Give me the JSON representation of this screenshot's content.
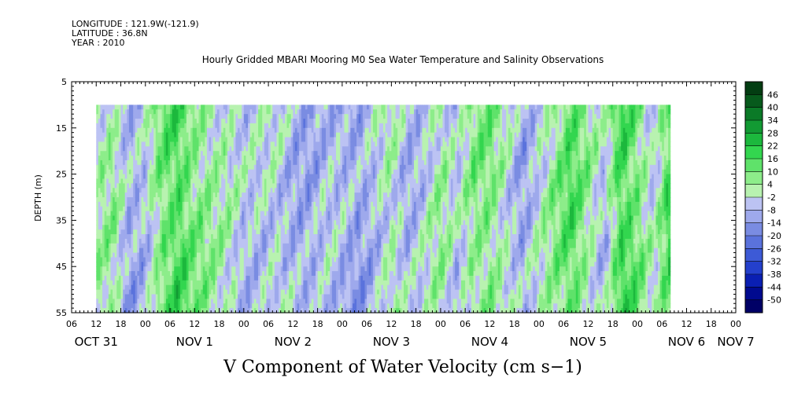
{
  "header": {
    "longitude": "LONGITUDE : 121.9W(-121.9)",
    "latitude": "LATITUDE : 36.8N",
    "year": "YEAR : 2010"
  },
  "chart_data": {
    "type": "heatmap",
    "title": "Hourly Gridded MBARI Mooring M0 Sea Water Temperature and Salinity Observations",
    "variable_label": "V Component of Water Velocity (cm s−1)",
    "ylabel": "DEPTH (m)",
    "y_reversed": true,
    "ylim": [
      5,
      55
    ],
    "data_depth_range": [
      10,
      55
    ],
    "y_ticks": [
      5,
      15,
      25,
      35,
      45,
      55
    ],
    "x_range_hours": [
      0,
      162
    ],
    "data_time_range_hours": [
      6,
      146
    ],
    "x_hour_ticks": [
      {
        "h": 0,
        "label": "06"
      },
      {
        "h": 6,
        "label": "12"
      },
      {
        "h": 12,
        "label": "18"
      },
      {
        "h": 18,
        "label": "00"
      },
      {
        "h": 24,
        "label": "06"
      },
      {
        "h": 30,
        "label": "12"
      },
      {
        "h": 36,
        "label": "18"
      },
      {
        "h": 42,
        "label": "00"
      },
      {
        "h": 48,
        "label": "06"
      },
      {
        "h": 54,
        "label": "12"
      },
      {
        "h": 60,
        "label": "18"
      },
      {
        "h": 66,
        "label": "00"
      },
      {
        "h": 72,
        "label": "06"
      },
      {
        "h": 78,
        "label": "12"
      },
      {
        "h": 84,
        "label": "18"
      },
      {
        "h": 90,
        "label": "00"
      },
      {
        "h": 96,
        "label": "06"
      },
      {
        "h": 102,
        "label": "12"
      },
      {
        "h": 108,
        "label": "18"
      },
      {
        "h": 114,
        "label": "00"
      },
      {
        "h": 120,
        "label": "06"
      },
      {
        "h": 126,
        "label": "12"
      },
      {
        "h": 132,
        "label": "18"
      },
      {
        "h": 138,
        "label": "00"
      },
      {
        "h": 144,
        "label": "06"
      },
      {
        "h": 150,
        "label": "12"
      },
      {
        "h": 156,
        "label": "18"
      },
      {
        "h": 162,
        "label": "00"
      }
    ],
    "x_day_labels": [
      {
        "h": 6,
        "label": "OCT 31"
      },
      {
        "h": 30,
        "label": "NOV  1"
      },
      {
        "h": 54,
        "label": "NOV  2"
      },
      {
        "h": 78,
        "label": "NOV  3"
      },
      {
        "h": 102,
        "label": "NOV  4"
      },
      {
        "h": 126,
        "label": "NOV  5"
      },
      {
        "h": 150,
        "label": "NOV  6"
      },
      {
        "h": 162,
        "label": "NOV  7"
      }
    ],
    "colorbar": {
      "levels": [
        -50,
        -44,
        -38,
        -32,
        -26,
        -20,
        -14,
        -8,
        -2,
        4,
        10,
        16,
        22,
        28,
        34,
        40,
        46
      ],
      "labels": [
        "46",
        "40",
        "34",
        "28",
        "22",
        "16",
        "10",
        "4",
        "-2",
        "-8",
        "-14",
        "-20",
        "-26",
        "-32",
        "-38",
        "-44",
        "-50"
      ],
      "colors": [
        "#000066",
        "#000a8f",
        "#0a1fb3",
        "#2440cc",
        "#3d5ad6",
        "#5a72dc",
        "#7a8ce2",
        "#9ea9ec",
        "#bcc3f3",
        "#b8f2b0",
        "#8ded8a",
        "#5fe26a",
        "#33d64f",
        "#1cb83d",
        "#129a33",
        "#0b7a27",
        "#075a1c",
        "#033d12"
      ]
    },
    "time_profile": [
      {
        "h": 6,
        "v": 2
      },
      {
        "h": 10,
        "v": 4
      },
      {
        "h": 14,
        "v": -10
      },
      {
        "h": 18,
        "v": -6
      },
      {
        "h": 22,
        "v": 10
      },
      {
        "h": 26,
        "v": 16
      },
      {
        "h": 30,
        "v": 8
      },
      {
        "h": 34,
        "v": 4
      },
      {
        "h": 38,
        "v": 0
      },
      {
        "h": 42,
        "v": -6
      },
      {
        "h": 46,
        "v": -4
      },
      {
        "h": 50,
        "v": -2
      },
      {
        "h": 54,
        "v": -8
      },
      {
        "h": 58,
        "v": -10
      },
      {
        "h": 62,
        "v": -6
      },
      {
        "h": 66,
        "v": -8
      },
      {
        "h": 70,
        "v": -12
      },
      {
        "h": 74,
        "v": -6
      },
      {
        "h": 78,
        "v": 2
      },
      {
        "h": 82,
        "v": -8
      },
      {
        "h": 86,
        "v": -4
      },
      {
        "h": 90,
        "v": 4
      },
      {
        "h": 94,
        "v": -6
      },
      {
        "h": 98,
        "v": 6
      },
      {
        "h": 102,
        "v": 8
      },
      {
        "h": 106,
        "v": 0
      },
      {
        "h": 110,
        "v": -10
      },
      {
        "h": 114,
        "v": -2
      },
      {
        "h": 118,
        "v": 6
      },
      {
        "h": 122,
        "v": 14
      },
      {
        "h": 126,
        "v": 4
      },
      {
        "h": 130,
        "v": -6
      },
      {
        "h": 134,
        "v": 18
      },
      {
        "h": 138,
        "v": 10
      },
      {
        "h": 142,
        "v": -4
      },
      {
        "h": 146,
        "v": 16
      }
    ]
  }
}
